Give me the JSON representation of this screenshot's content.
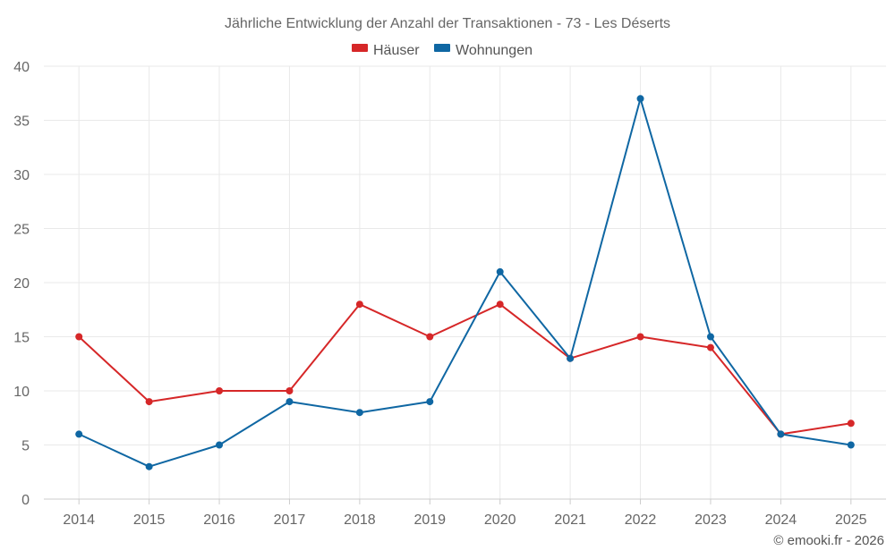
{
  "chart_data": {
    "type": "line",
    "title": "Jährliche Entwicklung der Anzahl der Transaktionen - 73 - Les Déserts",
    "categories": [
      "2014",
      "2015",
      "2016",
      "2017",
      "2018",
      "2019",
      "2020",
      "2021",
      "2022",
      "2023",
      "2024",
      "2025"
    ],
    "series": [
      {
        "name": "Häuser",
        "color": "#d62728",
        "values": [
          15,
          9,
          10,
          10,
          18,
          15,
          18,
          13,
          15,
          14,
          6,
          7
        ]
      },
      {
        "name": "Wohnungen",
        "color": "#0f67a3",
        "values": [
          6,
          3,
          5,
          9,
          8,
          9,
          21,
          13,
          37,
          15,
          6,
          5
        ]
      }
    ],
    "ylim": [
      0,
      40
    ],
    "yticks": [
      0,
      5,
      10,
      15,
      20,
      25,
      30,
      35,
      40
    ],
    "xlabel": "",
    "ylabel": "",
    "grid": true,
    "legend": "top-center"
  },
  "credit": "© emooki.fr - 2026"
}
